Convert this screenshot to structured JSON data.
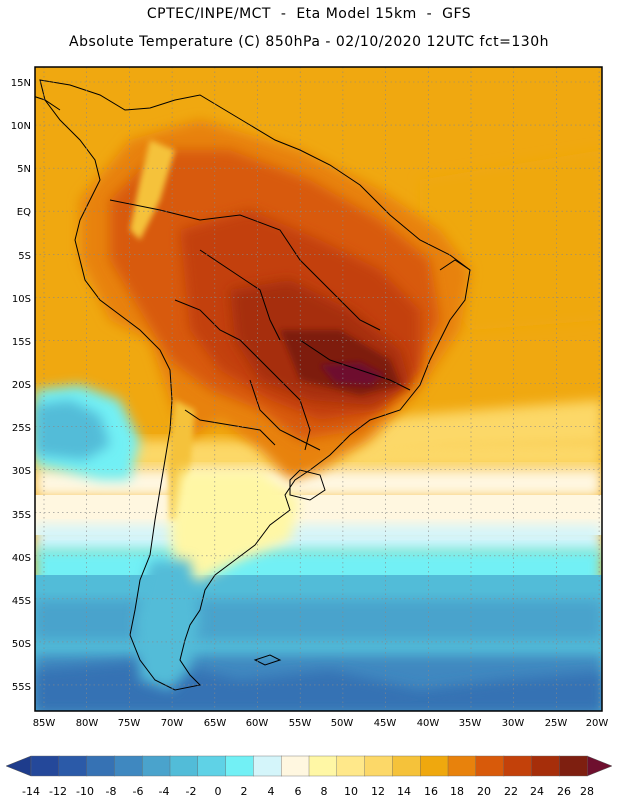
{
  "header": {
    "title_line1": "CPTEC/INPE/MCT  -  Eta Model 15km  -  GFS",
    "title_line2": "Absolute Temperature (C) 850hPa - 02/10/2020 12UTC fct=130h"
  },
  "map": {
    "lat_labels": [
      "15N",
      "10N",
      "5N",
      "EQ",
      "5S",
      "10S",
      "15S",
      "20S",
      "25S",
      "30S",
      "35S",
      "40S",
      "45S",
      "50S",
      "55S"
    ],
    "lon_labels": [
      "85W",
      "80W",
      "75W",
      "70W",
      "65W",
      "60W",
      "55W",
      "50W",
      "45W",
      "40W",
      "35W",
      "30W",
      "25W",
      "20W"
    ]
  },
  "colorbar": {
    "labels": [
      "-14",
      "-12",
      "-10",
      "-8",
      "-6",
      "-4",
      "-2",
      "0",
      "2",
      "4",
      "6",
      "8",
      "10",
      "12",
      "14",
      "16",
      "18",
      "20",
      "22",
      "24",
      "26",
      "28"
    ],
    "colors": [
      "#1e3c8c",
      "#24489a",
      "#2b5aa8",
      "#3672b4",
      "#3f88c0",
      "#4aa3cc",
      "#52bcd8",
      "#5fd2e6",
      "#72f0f5",
      "#d4f5fa",
      "#fff7e0",
      "#fff7a5",
      "#ffe88a",
      "#fcd868",
      "#f5c23a",
      "#efa80e",
      "#e8820c",
      "#d85a0a",
      "#c3410a",
      "#a62e0a",
      "#7e1f10",
      "#6e0f2e"
    ]
  }
}
